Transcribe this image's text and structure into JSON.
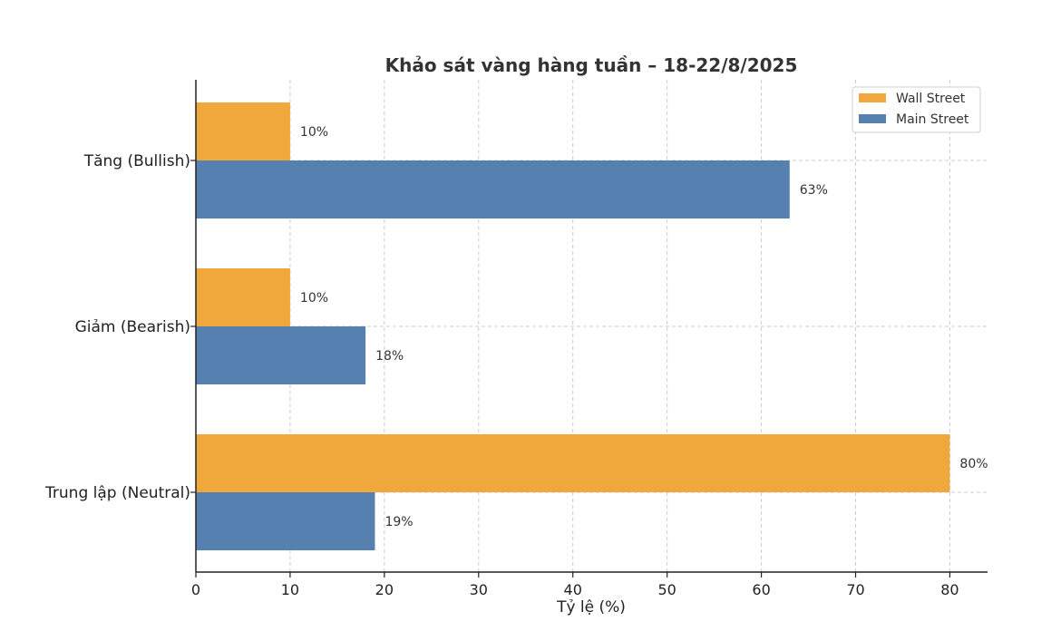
{
  "chart_data": {
    "type": "bar",
    "orientation": "horizontal",
    "title": "Khảo sát vàng hàng tuần – 18-22/8/2025",
    "xlabel": "Tỷ lệ (%)",
    "ylabel": "",
    "xlim": [
      0,
      84
    ],
    "xticks": [
      0,
      10,
      20,
      30,
      40,
      50,
      60,
      70,
      80
    ],
    "categories": [
      "Tăng (Bullish)",
      "Giảm (Bearish)",
      "Trung lập (Neutral)"
    ],
    "series": [
      {
        "name": "Wall Street",
        "color": "#F0A83C",
        "values": [
          10,
          10,
          80
        ],
        "labels": [
          "10%",
          "10%",
          "80%"
        ]
      },
      {
        "name": "Main Street",
        "color": "#5580B0",
        "values": [
          63,
          18,
          19
        ],
        "labels": [
          "63%",
          "18%",
          "19%"
        ]
      }
    ],
    "grid": true,
    "legend": "top-right"
  }
}
